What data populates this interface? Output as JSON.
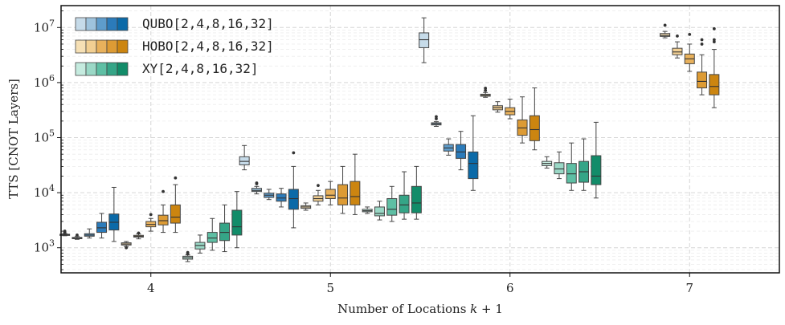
{
  "chart_data": {
    "type": "boxplot",
    "xlabel": "Number of Locations k + 1",
    "ylabel": "TTS [CNOT Layers]",
    "yscale": "log",
    "ylim": [
      350,
      25000000
    ],
    "y_ticks": [
      {
        "value": 1000,
        "base": "10",
        "exp": "3"
      },
      {
        "value": 10000,
        "base": "10",
        "exp": "4"
      },
      {
        "value": 100000,
        "base": "10",
        "exp": "5"
      },
      {
        "value": 1000000,
        "base": "10",
        "exp": "6"
      },
      {
        "value": 10000000,
        "base": "10",
        "exp": "7"
      }
    ],
    "categories": [
      "4",
      "5",
      "6",
      "7"
    ],
    "grid": true,
    "legend_position": "top-left",
    "groups": [
      {
        "name": "QUBO[2,4,8,16,32]",
        "colors": [
          "#c6dbe9",
          "#9ec3dd",
          "#5e9ccb",
          "#2b7bba",
          "#0b6aa8"
        ],
        "boxes": [
          [
            {
              "whislo": 1650,
              "q1": 1680,
              "med": 1720,
              "q3": 1760,
              "whishi": 1820,
              "fliers": [
                1900,
                2000
              ]
            },
            {
              "whislo": 1420,
              "q1": 1460,
              "med": 1500,
              "q3": 1540,
              "whishi": 1620,
              "fliers": [
                1700
              ]
            },
            {
              "whislo": 1500,
              "q1": 1620,
              "med": 1700,
              "q3": 1800,
              "whishi": 2200,
              "fliers": []
            },
            {
              "whislo": 1500,
              "q1": 1900,
              "med": 2300,
              "q3": 2900,
              "whishi": 4200,
              "fliers": []
            },
            {
              "whislo": 1300,
              "q1": 2100,
              "med": 2900,
              "q3": 4100,
              "whishi": 12500,
              "fliers": []
            }
          ],
          [
            {
              "whislo": 26000,
              "q1": 32000,
              "med": 37000,
              "q3": 45000,
              "whishi": 72000,
              "fliers": []
            },
            {
              "whislo": 9500,
              "q1": 10500,
              "med": 11000,
              "q3": 12000,
              "whishi": 13000,
              "fliers": [
                14500,
                15000
              ]
            },
            {
              "whislo": 7500,
              "q1": 8200,
              "med": 9000,
              "q3": 9800,
              "whishi": 11500,
              "fliers": []
            },
            {
              "whislo": 5500,
              "q1": 7000,
              "med": 8000,
              "q3": 9500,
              "whishi": 12000,
              "fliers": []
            },
            {
              "whislo": 2300,
              "q1": 5000,
              "med": 7800,
              "q3": 11500,
              "whishi": 30000,
              "fliers": [
                53000
              ]
            }
          ],
          [
            {
              "whislo": 2300000,
              "q1": 4300000,
              "med": 6000000,
              "q3": 8000000,
              "whishi": 15000000,
              "fliers": []
            },
            {
              "whislo": 160000,
              "q1": 170000,
              "med": 178000,
              "q3": 186000,
              "whishi": 195000,
              "fliers": [
                220000,
                240000
              ]
            },
            {
              "whislo": 48000,
              "q1": 57000,
              "med": 65000,
              "q3": 75000,
              "whishi": 95000,
              "fliers": []
            },
            {
              "whislo": 26000,
              "q1": 42000,
              "med": 55000,
              "q3": 75000,
              "whishi": 130000,
              "fliers": []
            },
            {
              "whislo": 11000,
              "q1": 18000,
              "med": 34000,
              "q3": 55000,
              "whishi": 250000,
              "fliers": []
            }
          ],
          []
        ]
      },
      {
        "name": "HOBO[2,4,8,16,32]",
        "colors": [
          "#f6e0b5",
          "#f2cf92",
          "#e8b15c",
          "#dd9b34",
          "#cc8510"
        ],
        "boxes": [
          [
            {
              "whislo": 1050,
              "q1": 1120,
              "med": 1170,
              "q3": 1230,
              "whishi": 1300,
              "fliers": [
                1000
              ]
            },
            {
              "whislo": 1450,
              "q1": 1560,
              "med": 1620,
              "q3": 1680,
              "whishi": 1780,
              "fliers": [
                1850
              ]
            },
            {
              "whislo": 2000,
              "q1": 2400,
              "med": 2650,
              "q3": 3000,
              "whishi": 3400,
              "fliers": [
                4000
              ]
            },
            {
              "whislo": 1900,
              "q1": 2600,
              "med": 3100,
              "q3": 3900,
              "whishi": 6000,
              "fliers": [
                10500
              ]
            },
            {
              "whislo": 1900,
              "q1": 2800,
              "med": 3600,
              "q3": 6000,
              "whishi": 14000,
              "fliers": [
                18500
              ]
            }
          ],
          [
            {
              "whislo": 4800,
              "q1": 5200,
              "med": 5500,
              "q3": 5800,
              "whishi": 6500,
              "fliers": []
            },
            {
              "whislo": 6000,
              "q1": 7000,
              "med": 7800,
              "q3": 8800,
              "whishi": 11000,
              "fliers": [
                13500
              ]
            },
            {
              "whislo": 6000,
              "q1": 7800,
              "med": 9000,
              "q3": 11500,
              "whishi": 16000,
              "fliers": []
            },
            {
              "whislo": 4200,
              "q1": 6000,
              "med": 8000,
              "q3": 14000,
              "whishi": 30000,
              "fliers": []
            },
            {
              "whislo": 4000,
              "q1": 6000,
              "med": 8500,
              "q3": 16000,
              "whishi": 50000,
              "fliers": []
            }
          ],
          [
            {
              "whislo": 540000,
              "q1": 565000,
              "med": 590000,
              "q3": 615000,
              "whishi": 660000,
              "fliers": [
                720000,
                790000
              ]
            },
            {
              "whislo": 290000,
              "q1": 320000,
              "med": 350000,
              "q3": 380000,
              "whishi": 450000,
              "fliers": []
            },
            {
              "whislo": 220000,
              "q1": 260000,
              "med": 300000,
              "q3": 350000,
              "whishi": 500000,
              "fliers": []
            },
            {
              "whislo": 80000,
              "q1": 110000,
              "med": 150000,
              "q3": 210000,
              "whishi": 550000,
              "fliers": []
            },
            {
              "whislo": 60000,
              "q1": 88000,
              "med": 140000,
              "q3": 250000,
              "whishi": 800000,
              "fliers": []
            }
          ],
          [
            {
              "whislo": 6500000,
              "q1": 6900000,
              "med": 7200000,
              "q3": 7800000,
              "whishi": 8500000,
              "fliers": [
                11000000
              ]
            },
            {
              "whislo": 2800000,
              "q1": 3200000,
              "med": 3600000,
              "q3": 4200000,
              "whishi": 5500000,
              "fliers": [
                7000000
              ]
            },
            {
              "whislo": 1600000,
              "q1": 2200000,
              "med": 2700000,
              "q3": 3300000,
              "whishi": 5000000,
              "fliers": [
                7500000
              ]
            },
            {
              "whislo": 600000,
              "q1": 800000,
              "med": 1050000,
              "q3": 1550000,
              "whishi": 3200000,
              "fliers": [
                5000000,
                6000000
              ]
            },
            {
              "whislo": 350000,
              "q1": 600000,
              "med": 850000,
              "q3": 1400000,
              "whishi": 4000000,
              "fliers": [
                5500000,
                6000000,
                9500000
              ]
            }
          ]
        ]
      },
      {
        "name": "XY[2,4,8,16,32]",
        "colors": [
          "#c5ebdf",
          "#9ad8c6",
          "#5ebfa4",
          "#35a587",
          "#128c69"
        ],
        "boxes": [
          [
            {
              "whislo": 560,
              "q1": 620,
              "med": 660,
              "q3": 700,
              "whishi": 740,
              "fliers": [
                780,
                820
              ]
            },
            {
              "whislo": 800,
              "q1": 950,
              "med": 1100,
              "q3": 1250,
              "whishi": 1700,
              "fliers": []
            },
            {
              "whislo": 900,
              "q1": 1250,
              "med": 1500,
              "q3": 1900,
              "whishi": 3400,
              "fliers": []
            },
            {
              "whislo": 850,
              "q1": 1350,
              "med": 1900,
              "q3": 2800,
              "whishi": 6000,
              "fliers": []
            },
            {
              "whislo": 1000,
              "q1": 1700,
              "med": 2400,
              "q3": 4800,
              "whishi": 10500,
              "fliers": []
            }
          ],
          [
            {
              "whislo": 4200,
              "q1": 4500,
              "med": 4700,
              "q3": 5000,
              "whishi": 5500,
              "fliers": []
            },
            {
              "whislo": 3200,
              "q1": 3800,
              "med": 4200,
              "q3": 5500,
              "whishi": 7000,
              "fliers": []
            },
            {
              "whislo": 3000,
              "q1": 3900,
              "med": 5000,
              "q3": 7800,
              "whishi": 13000,
              "fliers": []
            },
            {
              "whislo": 3300,
              "q1": 4300,
              "med": 6000,
              "q3": 9000,
              "whishi": 24000,
              "fliers": []
            },
            {
              "whislo": 3300,
              "q1": 4300,
              "med": 6500,
              "q3": 13000,
              "whishi": 30000,
              "fliers": []
            }
          ],
          [
            {
              "whislo": 28000,
              "q1": 31000,
              "med": 34000,
              "q3": 37000,
              "whishi": 45000,
              "fliers": []
            },
            {
              "whislo": 18000,
              "q1": 22000,
              "med": 27000,
              "q3": 35000,
              "whishi": 55000,
              "fliers": []
            },
            {
              "whislo": 11000,
              "q1": 15000,
              "med": 22000,
              "q3": 34000,
              "whishi": 80000,
              "fliers": []
            },
            {
              "whislo": 11000,
              "q1": 15500,
              "med": 24000,
              "q3": 37000,
              "whishi": 95000,
              "fliers": []
            },
            {
              "whislo": 8000,
              "q1": 14000,
              "med": 20000,
              "q3": 47000,
              "whishi": 190000,
              "fliers": []
            }
          ],
          []
        ]
      }
    ]
  }
}
